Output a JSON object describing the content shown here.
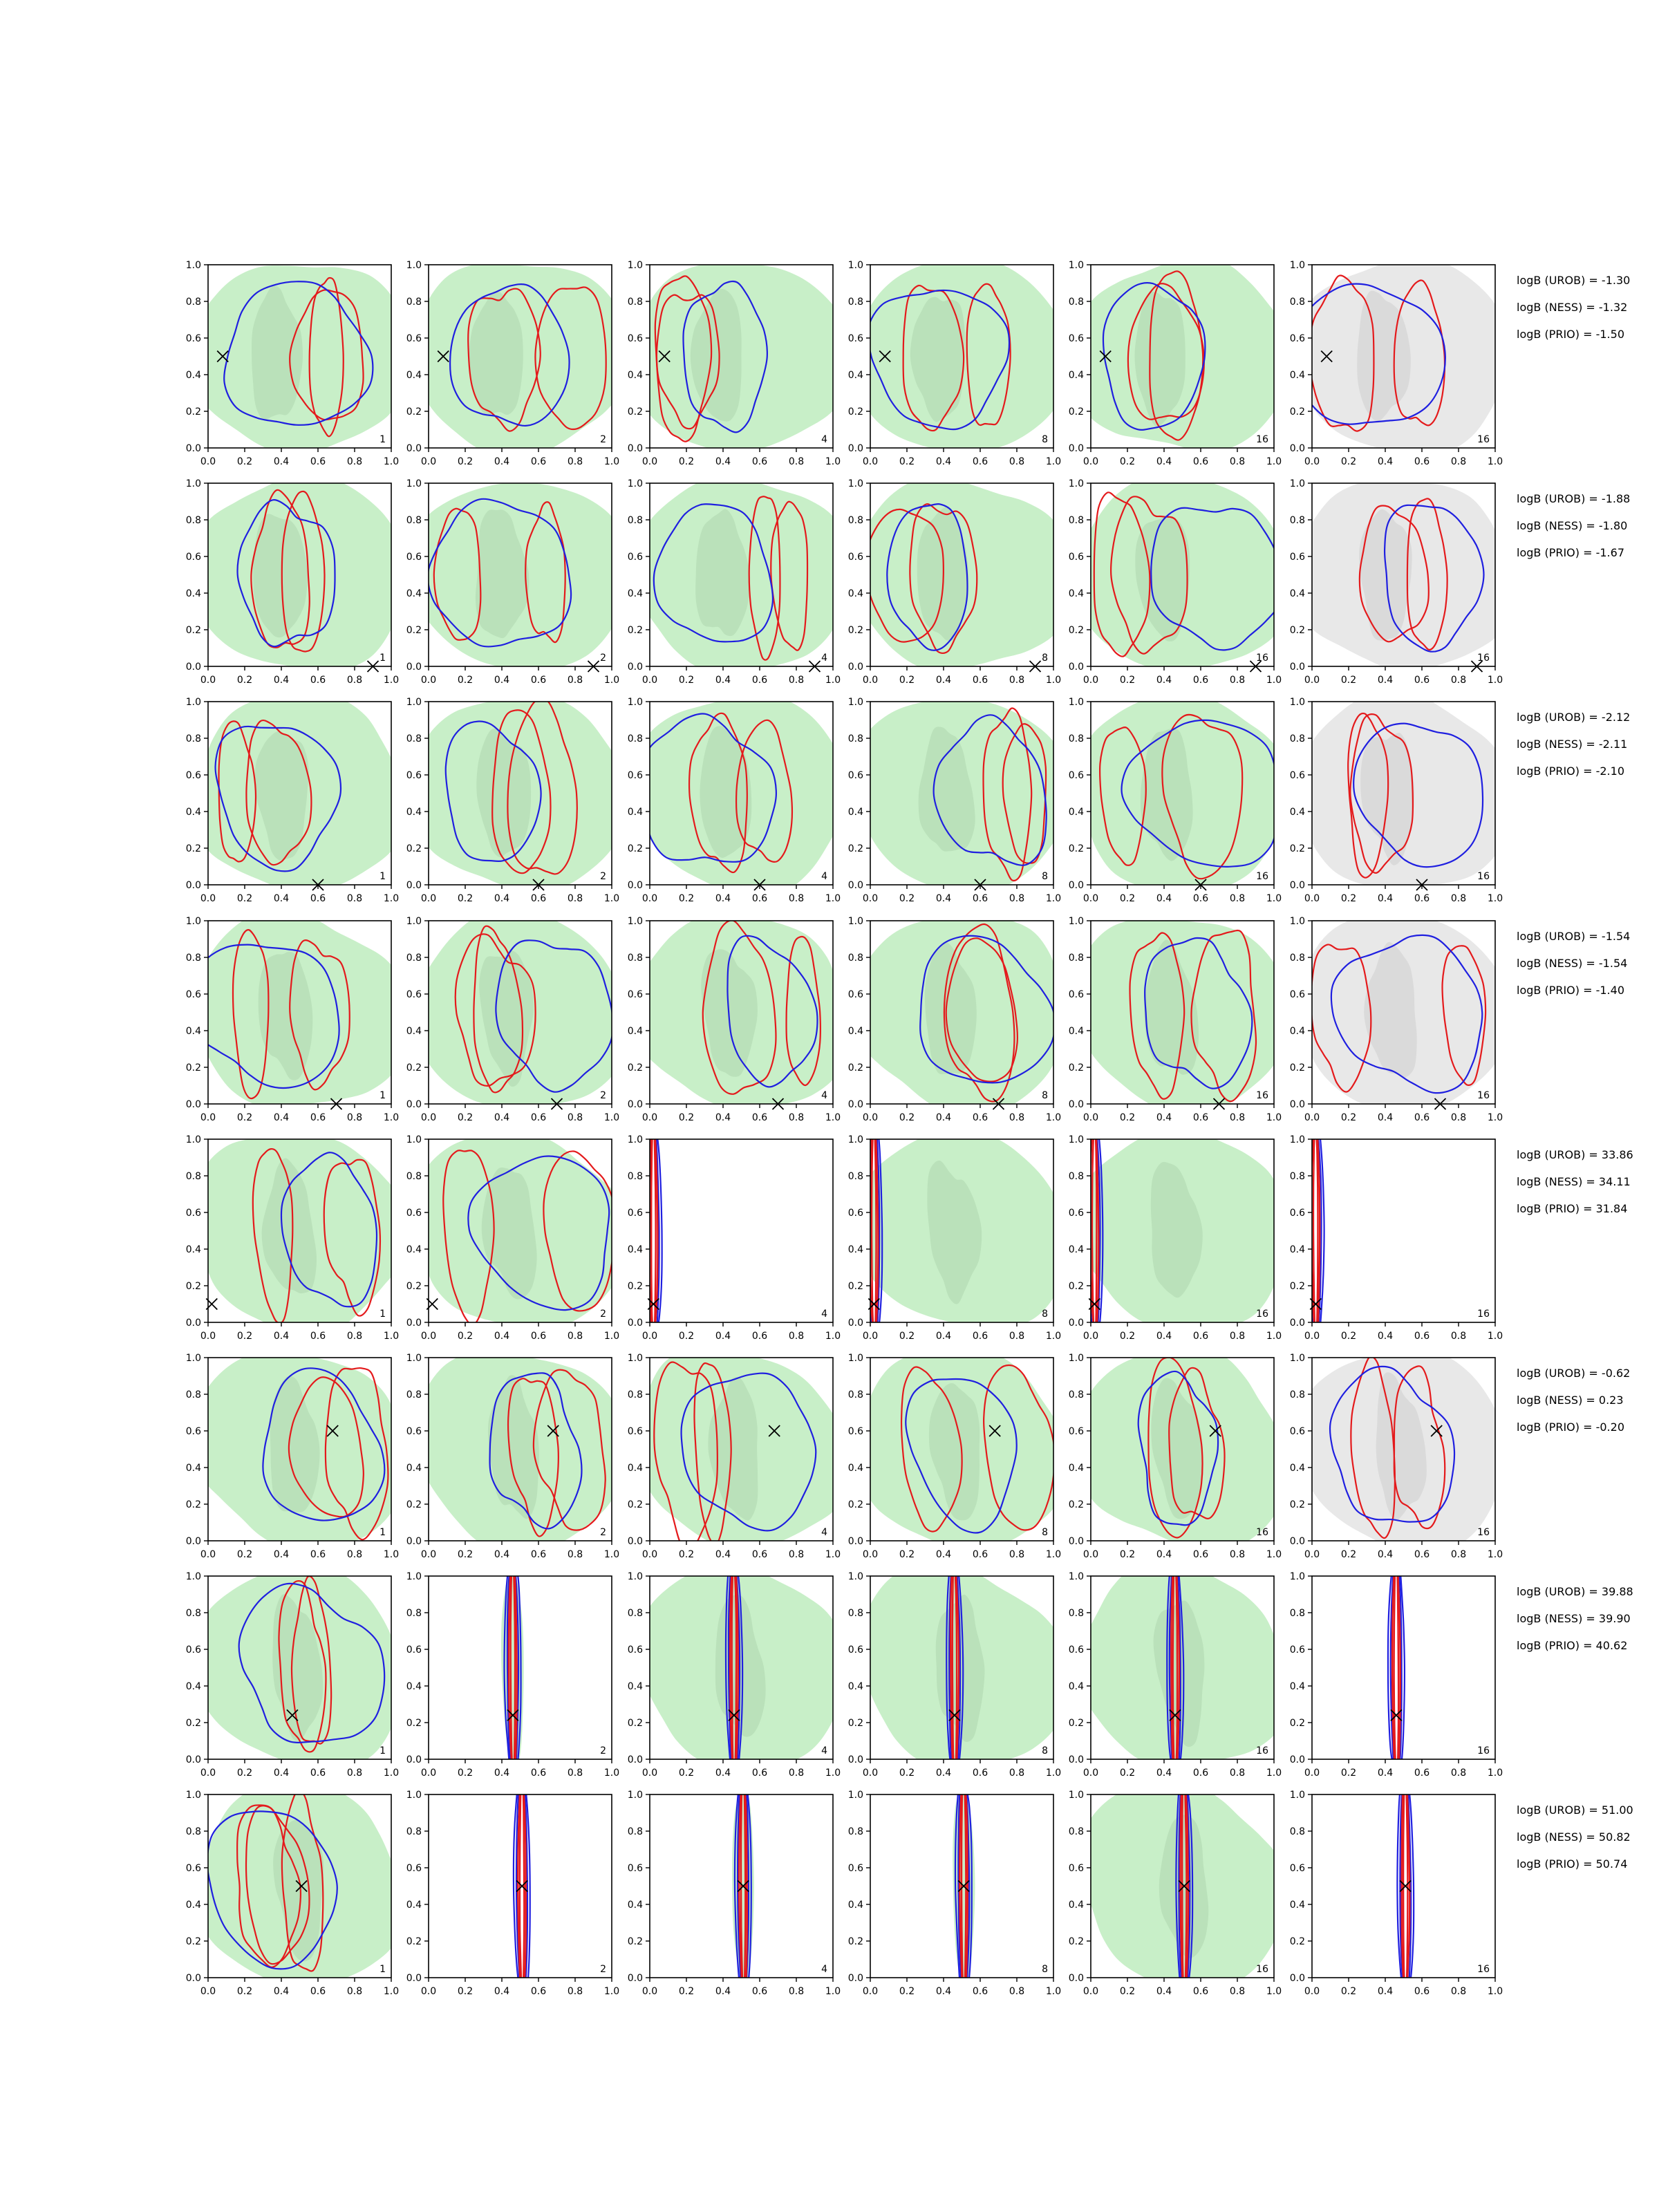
{
  "chart_data": {
    "type": "contour",
    "grid": {
      "rows": 8,
      "cols": 6
    },
    "xlim": [
      0.0,
      1.0
    ],
    "ylim": [
      0.0,
      1.0
    ],
    "ticks": [
      "0.0",
      "0.2",
      "0.4",
      "0.6",
      "0.8",
      "1.0"
    ],
    "column_labels": [
      "1",
      "2",
      "4",
      "8",
      "16",
      "16"
    ],
    "colors": {
      "red_contour": "#e41a1c",
      "blue_contour": "#1f1fe0",
      "green_fill": "#c8efc8",
      "green_fill_dark": "#b4dcb4",
      "grey_fill": "#e8e8e8",
      "grey_fill_dark": "#d4d4d4",
      "marker": "#000000"
    },
    "rows": [
      {
        "marker": [
          0.08,
          0.5
        ],
        "logB": [
          "logB (UROB) = -1.30",
          "logB (NESS) = -1.32",
          "logB (PRIO) = -1.50"
        ]
      },
      {
        "marker": [
          0.9,
          0.0
        ],
        "logB": [
          "logB (UROB) = -1.88",
          "logB (NESS) = -1.80",
          "logB (PRIO) = -1.67"
        ]
      },
      {
        "marker": [
          0.6,
          0.0
        ],
        "logB": [
          "logB (UROB) = -2.12",
          "logB (NESS) = -2.11",
          "logB (PRIO) = -2.10"
        ]
      },
      {
        "marker": [
          0.7,
          0.0
        ],
        "logB": [
          "logB (UROB) = -1.54",
          "logB (NESS) = -1.54",
          "logB (PRIO) = -1.40"
        ]
      },
      {
        "marker": [
          0.02,
          0.1
        ],
        "logB": [
          "logB (UROB) = 33.86",
          "logB (NESS) = 34.11",
          "logB (PRIO) = 31.84"
        ]
      },
      {
        "marker": [
          0.68,
          0.6
        ],
        "logB": [
          "logB (UROB) = -0.62",
          "logB (NESS) = 0.23",
          "logB (PRIO) = -0.20"
        ]
      },
      {
        "marker": [
          0.46,
          0.24
        ],
        "logB": [
          "logB (UROB) = 39.88",
          "logB (NESS) = 39.90",
          "logB (PRIO) = 40.62"
        ]
      },
      {
        "marker": [
          0.51,
          0.5
        ],
        "logB": [
          "logB (UROB) = 51.00",
          "logB (NESS) = 50.82",
          "logB (PRIO) = 50.74"
        ]
      }
    ]
  }
}
